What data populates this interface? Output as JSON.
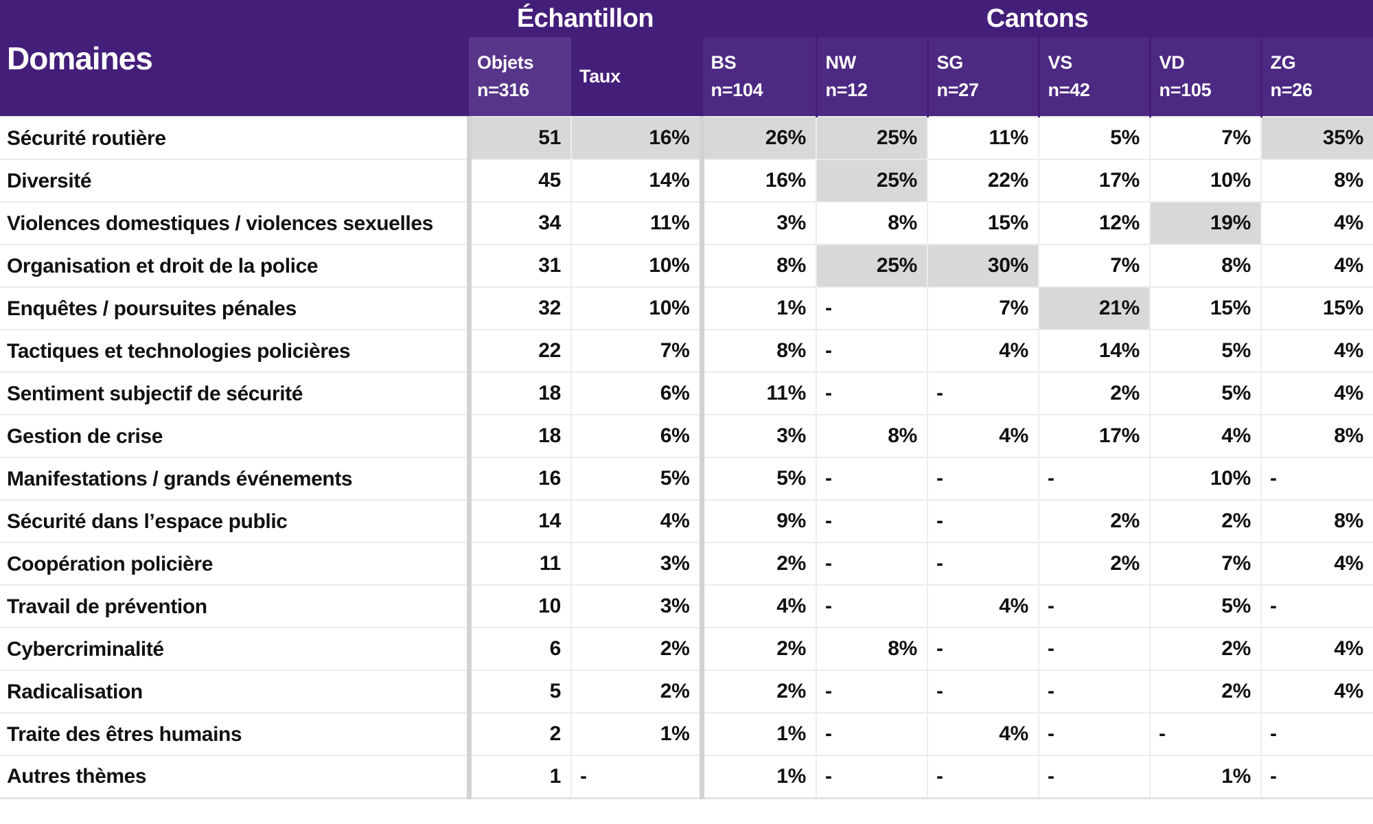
{
  "colors": {
    "header_bg": "#441f7a",
    "header_text": "#ffffff",
    "highlight": "#d8d8d8",
    "row_border": "#eaeaea",
    "thick_separator": "#d2d2d2",
    "body_text": "#111111"
  },
  "chart_data": {
    "type": "table",
    "corner_label": "Domaines",
    "groups": [
      {
        "label": "Échantillon",
        "span": 2
      },
      {
        "label": "Cantons",
        "span": 6
      }
    ],
    "columns": [
      {
        "key": "objets",
        "name": "Objets",
        "sub": "n=316"
      },
      {
        "key": "taux",
        "name": "Taux",
        "sub": ""
      },
      {
        "key": "bs",
        "name": "BS",
        "sub": "n=104"
      },
      {
        "key": "nw",
        "name": "NW",
        "sub": "n=12"
      },
      {
        "key": "sg",
        "name": "SG",
        "sub": "n=27"
      },
      {
        "key": "vs",
        "name": "VS",
        "sub": "n=42"
      },
      {
        "key": "vd",
        "name": "VD",
        "sub": "n=105"
      },
      {
        "key": "zg",
        "name": "ZG",
        "sub": "n=26"
      }
    ],
    "rows": [
      {
        "label": "Sécurité routière",
        "values": [
          "51",
          "16%",
          "26%",
          "25%",
          "11%",
          "5%",
          "7%",
          "35%"
        ],
        "highlighted_cols": [
          0,
          1,
          2,
          3,
          7
        ]
      },
      {
        "label": "Diversité",
        "values": [
          "45",
          "14%",
          "16%",
          "25%",
          "22%",
          "17%",
          "10%",
          "8%"
        ],
        "highlighted_cols": [
          3
        ]
      },
      {
        "label": "Violences domestiques / violences sexuelles",
        "values": [
          "34",
          "11%",
          "3%",
          "8%",
          "15%",
          "12%",
          "19%",
          "4%"
        ],
        "highlighted_cols": [
          6
        ]
      },
      {
        "label": "Organisation et droit de la police",
        "values": [
          "31",
          "10%",
          "8%",
          "25%",
          "30%",
          "7%",
          "8%",
          "4%"
        ],
        "highlighted_cols": [
          3,
          4
        ]
      },
      {
        "label": "Enquêtes / poursuites pénales",
        "values": [
          "32",
          "10%",
          "1%",
          "-",
          "7%",
          "21%",
          "15%",
          "15%"
        ],
        "highlighted_cols": [
          5
        ]
      },
      {
        "label": "Tactiques et technologies policières",
        "values": [
          "22",
          "7%",
          "8%",
          "-",
          "4%",
          "14%",
          "5%",
          "4%"
        ],
        "highlighted_cols": []
      },
      {
        "label": "Sentiment subjectif de sécurité",
        "values": [
          "18",
          "6%",
          "11%",
          "-",
          "-",
          "2%",
          "5%",
          "4%"
        ],
        "highlighted_cols": []
      },
      {
        "label": "Gestion de crise",
        "values": [
          "18",
          "6%",
          "3%",
          "8%",
          "4%",
          "17%",
          "4%",
          "8%"
        ],
        "highlighted_cols": []
      },
      {
        "label": "Manifestations / grands événements",
        "values": [
          "16",
          "5%",
          "5%",
          "-",
          "-",
          "-",
          "10%",
          "-"
        ],
        "highlighted_cols": []
      },
      {
        "label": "Sécurité dans l’espace public",
        "values": [
          "14",
          "4%",
          "9%",
          "-",
          "-",
          "2%",
          "2%",
          "8%"
        ],
        "highlighted_cols": []
      },
      {
        "label": "Coopération policière",
        "values": [
          "11",
          "3%",
          "2%",
          "-",
          "-",
          "2%",
          "7%",
          "4%"
        ],
        "highlighted_cols": []
      },
      {
        "label": "Travail de prévention",
        "values": [
          "10",
          "3%",
          "4%",
          "-",
          "4%",
          "-",
          "5%",
          "-"
        ],
        "highlighted_cols": []
      },
      {
        "label": "Cybercriminalité",
        "values": [
          "6",
          "2%",
          "2%",
          "8%",
          "-",
          "-",
          "2%",
          "4%"
        ],
        "highlighted_cols": []
      },
      {
        "label": "Radicalisation",
        "values": [
          "5",
          "2%",
          "2%",
          "-",
          "-",
          "-",
          "2%",
          "4%"
        ],
        "highlighted_cols": []
      },
      {
        "label": "Traite des êtres humains",
        "values": [
          "2",
          "1%",
          "1%",
          "-",
          "4%",
          "-",
          "-",
          "-"
        ],
        "highlighted_cols": []
      },
      {
        "label": "Autres thèmes",
        "values": [
          "1",
          "-",
          "1%",
          "-",
          "-",
          "-",
          "1%",
          "-"
        ],
        "highlighted_cols": []
      }
    ]
  }
}
